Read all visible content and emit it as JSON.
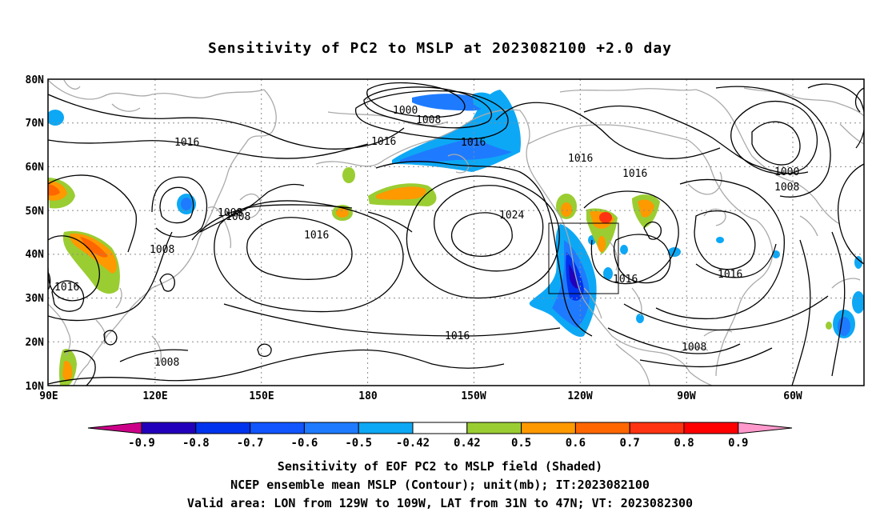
{
  "title": "Sensitivity of PC2 to MSLP at 2023082100 +2.0 day",
  "lat_labels": [
    "80N",
    "70N",
    "60N",
    "50N",
    "40N",
    "30N",
    "20N",
    "10N"
  ],
  "lon_labels": [
    "90E",
    "120E",
    "150E",
    "180",
    "150W",
    "120W",
    "90W",
    "60W"
  ],
  "contour_labels": [
    "1000",
    "1008",
    "1016",
    "1016",
    "1016",
    "1016",
    "1016",
    "1016",
    "1016",
    "1016",
    "1024",
    "1008",
    "1008",
    "1008",
    "1008",
    "1000",
    "1008",
    "1016",
    "1016",
    "1008"
  ],
  "colorbar": {
    "labels": [
      "-0.9",
      "-0.8",
      "-0.7",
      "-0.6",
      "-0.5",
      "-0.42",
      "0.42",
      "0.5",
      "0.6",
      "0.7",
      "0.8",
      "0.9"
    ],
    "colors": [
      "#2200bb",
      "#0033ee",
      "#1155ff",
      "#1e7bff",
      "#0da8f5",
      "#ffffff",
      "#9acd32",
      "#ff9900",
      "#ff6600",
      "#ff3311",
      "#ff0000"
    ],
    "end_low_color": "#cc0088",
    "end_high_color": "#ff99cc"
  },
  "captions": [
    "Sensitivity of EOF PC2 to MSLP field (Shaded)",
    "NCEP ensemble mean MSLP (Contour); unit(mb); IT:2023082100",
    "Valid area: LON from 129W to 109W, LAT from 31N to 47N; VT: 2023082300"
  ]
}
